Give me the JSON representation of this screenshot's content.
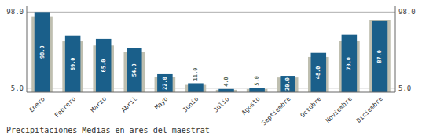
{
  "chart_data": {
    "type": "bar",
    "title": "Precipitaciones Medias en ares del maestrat",
    "categories": [
      "Enero",
      "Febrero",
      "Marzo",
      "Abril",
      "Mayo",
      "Junio",
      "Julio",
      "Agosto",
      "Septiembre",
      "Octubre",
      "Noviembre",
      "Diciembre"
    ],
    "series": [
      {
        "color": "#bfbfb0",
        "values": [
          92,
          62,
          57,
          49,
          19,
          9,
          3,
          4,
          18,
          43,
          63,
          88
        ]
      },
      {
        "color": "#1a5f8a",
        "values": [
          98,
          69,
          65,
          54,
          22,
          11,
          4,
          5,
          20,
          48,
          70,
          87
        ],
        "value_labels": [
          "98.0",
          "69.0",
          "65.0",
          "54.0",
          "22.0",
          "11.0",
          "4.0",
          "5.0",
          "20.0",
          "48.0",
          "70.0",
          "87.0"
        ],
        "data_labels": true
      }
    ],
    "ylim": [
      0,
      105
    ],
    "yticks": [
      {
        "value": 5.0,
        "label": "5.0"
      },
      {
        "value": 98.0,
        "label": "98.0"
      }
    ],
    "y2lim": [
      0,
      105
    ],
    "y2ticks": [
      {
        "value": 5.0,
        "label": "5.0"
      },
      {
        "value": 98.0,
        "label": "98.0"
      }
    ],
    "grid": true
  }
}
